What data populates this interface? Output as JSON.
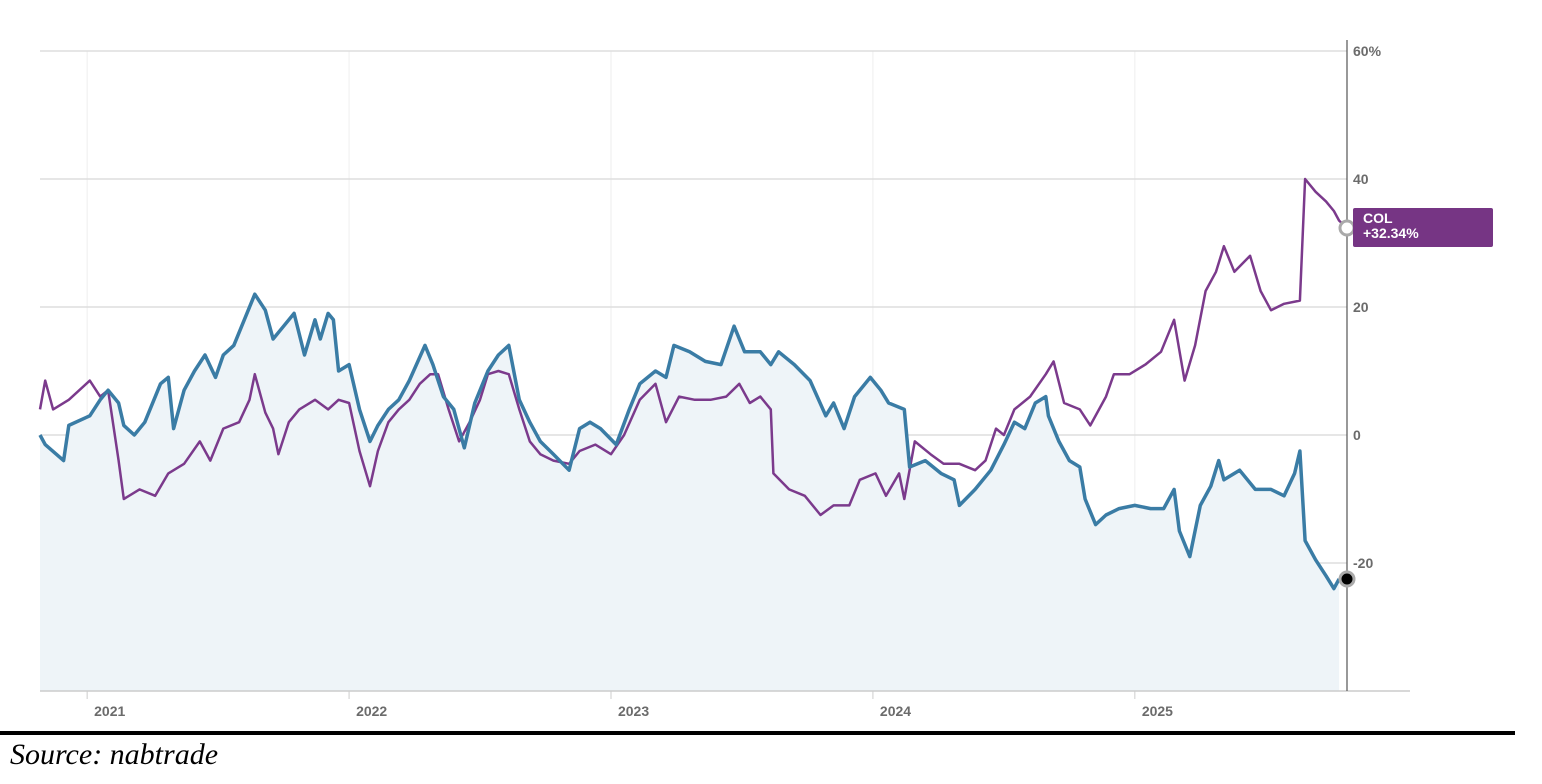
{
  "chart_data": {
    "type": "line",
    "title": "",
    "xlabel": "",
    "ylabel": "",
    "xlim": [
      2020.82,
      2025.81
    ],
    "ylim": [
      -40,
      60
    ],
    "grid": true,
    "y_axis_side": "right",
    "y_ticks": [
      {
        "value": 60,
        "label": "60%"
      },
      {
        "value": 40,
        "label": "40"
      },
      {
        "value": 20,
        "label": "20"
      },
      {
        "value": 0,
        "label": "0"
      },
      {
        "value": -20,
        "label": "-20"
      }
    ],
    "x_ticks": [
      {
        "value": 2021,
        "label": "2021"
      },
      {
        "value": 2022,
        "label": "2022"
      },
      {
        "value": 2023,
        "label": "2023"
      },
      {
        "value": 2024,
        "label": "2024"
      },
      {
        "value": 2025,
        "label": "2025"
      }
    ],
    "series": [
      {
        "name": "",
        "color": "#3a7ca5",
        "fill": "#eef4f8",
        "x": [
          2020.82,
          2020.84,
          2020.91,
          2020.93,
          2021.01,
          2021.05,
          2021.08,
          2021.12,
          2021.14,
          2021.18,
          2021.22,
          2021.28,
          2021.31,
          2021.33,
          2021.37,
          2021.41,
          2021.45,
          2021.49,
          2021.52,
          2021.56,
          2021.6,
          2021.64,
          2021.68,
          2021.71,
          2021.75,
          2021.79,
          2021.83,
          2021.87,
          2021.89,
          2021.92,
          2021.94,
          2021.96,
          2022.0,
          2022.04,
          2022.08,
          2022.11,
          2022.15,
          2022.19,
          2022.23,
          2022.29,
          2022.32,
          2022.36,
          2022.4,
          2022.44,
          2022.48,
          2022.53,
          2022.57,
          2022.61,
          2022.65,
          2022.69,
          2022.73,
          2022.78,
          2022.84,
          2022.88,
          2022.92,
          2022.96,
          2023.02,
          2023.07,
          2023.11,
          2023.17,
          2023.21,
          2023.24,
          2023.3,
          2023.36,
          2023.42,
          2023.47,
          2023.51,
          2023.57,
          2023.61,
          2023.64,
          2023.7,
          2023.76,
          2023.82,
          2023.85,
          2023.89,
          2023.93,
          2023.99,
          2024.03,
          2024.06,
          2024.12,
          2024.14,
          2024.2,
          2024.26,
          2024.31,
          2024.33,
          2024.39,
          2024.45,
          2024.5,
          2024.54,
          2024.58,
          2024.62,
          2024.66,
          2024.67,
          2024.71,
          2024.75,
          2024.79,
          2024.81,
          2024.85,
          2024.89,
          2024.94,
          2025.0,
          2025.06,
          2025.11,
          2025.15,
          2025.17,
          2025.21,
          2025.25,
          2025.29,
          2025.32,
          2025.34,
          2025.4,
          2025.46,
          2025.52,
          2025.57,
          2025.61,
          2025.63,
          2025.65,
          2025.69,
          2025.73,
          2025.76,
          2025.78
        ],
        "y": [
          0,
          -1.5,
          -4,
          1.5,
          3,
          5.5,
          7,
          5,
          1.5,
          0,
          2,
          8,
          9,
          1,
          7,
          10,
          12.5,
          9,
          12.5,
          14,
          18,
          22,
          19.5,
          15,
          17,
          19,
          12.5,
          18,
          15,
          19,
          18,
          10,
          11,
          4,
          -1,
          1.5,
          4,
          5.5,
          8.5,
          14,
          11,
          6,
          4,
          -2,
          5,
          10,
          12.5,
          14,
          5.5,
          2,
          -1,
          -3,
          -5.5,
          1,
          2,
          1,
          -1.5,
          4,
          8,
          10,
          9,
          14,
          13,
          11.5,
          11,
          17,
          13,
          13,
          11,
          13,
          11,
          8.5,
          3,
          5,
          1,
          6,
          9,
          7,
          5,
          4,
          -5,
          -4,
          -6,
          -7,
          -11,
          -8.5,
          -5.5,
          -1.5,
          2,
          1,
          5,
          6,
          3,
          -1,
          -4,
          -5,
          -10,
          -14,
          -12.5,
          -11.5,
          -11,
          -11.5,
          -11.5,
          -8.5,
          -15,
          -19,
          -11,
          -8,
          -4,
          -7,
          -5.5,
          -8.5,
          -8.5,
          -9.5,
          -6,
          -2.5,
          -16.5,
          -19.5,
          -22,
          -24,
          -22.5
        ]
      },
      {
        "name": "COL",
        "color": "#7b3a8c",
        "last_value_label": "+32.34%",
        "x": [
          2020.82,
          2020.84,
          2020.87,
          2020.93,
          2021.01,
          2021.05,
          2021.08,
          2021.12,
          2021.14,
          2021.2,
          2021.26,
          2021.31,
          2021.37,
          2021.43,
          2021.47,
          2021.52,
          2021.58,
          2021.62,
          2021.64,
          2021.68,
          2021.71,
          2021.73,
          2021.77,
          2021.81,
          2021.87,
          2021.92,
          2021.96,
          2022.0,
          2022.04,
          2022.08,
          2022.11,
          2022.15,
          2022.19,
          2022.23,
          2022.27,
          2022.31,
          2022.34,
          2022.38,
          2022.42,
          2022.46,
          2022.5,
          2022.53,
          2022.57,
          2022.61,
          2022.65,
          2022.69,
          2022.73,
          2022.78,
          2022.84,
          2022.88,
          2022.94,
          2023.0,
          2023.05,
          2023.11,
          2023.17,
          2023.21,
          2023.26,
          2023.32,
          2023.38,
          2023.44,
          2023.49,
          2023.53,
          2023.57,
          2023.61,
          2023.62,
          2023.68,
          2023.74,
          2023.8,
          2023.85,
          2023.91,
          2023.95,
          2024.01,
          2024.05,
          2024.1,
          2024.12,
          2024.16,
          2024.22,
          2024.27,
          2024.33,
          2024.39,
          2024.43,
          2024.47,
          2024.5,
          2024.54,
          2024.6,
          2024.66,
          2024.69,
          2024.73,
          2024.79,
          2024.83,
          2024.89,
          2024.92,
          2024.98,
          2025.04,
          2025.1,
          2025.15,
          2025.19,
          2025.23,
          2025.27,
          2025.31,
          2025.34,
          2025.38,
          2025.44,
          2025.48,
          2025.52,
          2025.57,
          2025.63,
          2025.65,
          2025.69,
          2025.73,
          2025.76,
          2025.78,
          2025.81
        ],
        "y": [
          4,
          8.5,
          4,
          5.5,
          8.5,
          6,
          7,
          -4,
          -10,
          -8.5,
          -9.5,
          -6,
          -4.5,
          -1,
          -4,
          1,
          2,
          5.5,
          9.5,
          3.5,
          1,
          -3,
          2,
          4,
          5.5,
          4,
          5.5,
          5,
          -2.5,
          -8,
          -2.5,
          2,
          4,
          5.5,
          8,
          9.5,
          9.5,
          4,
          -1,
          2,
          5.5,
          9.5,
          10,
          9.5,
          4,
          -1,
          -3,
          -4,
          -4.5,
          -2.5,
          -1.5,
          -3,
          0,
          5.5,
          8,
          2,
          6,
          5.5,
          5.5,
          6,
          8,
          5,
          6,
          4,
          -6,
          -8.5,
          -9.5,
          -12.5,
          -11,
          -11,
          -7,
          -6,
          -9.5,
          -6,
          -10,
          -1,
          -3,
          -4.5,
          -4.5,
          -5.5,
          -4,
          1,
          0,
          4,
          6,
          9.5,
          11.5,
          5,
          4,
          1.5,
          6,
          9.5,
          9.5,
          11,
          13,
          18,
          8.5,
          14,
          22.5,
          25.5,
          29.5,
          25.5,
          28,
          22.5,
          19.5,
          20.5,
          21,
          40,
          38,
          36.5,
          35,
          33.5,
          32.34
        ]
      }
    ]
  },
  "source": "Source: nabtrade"
}
